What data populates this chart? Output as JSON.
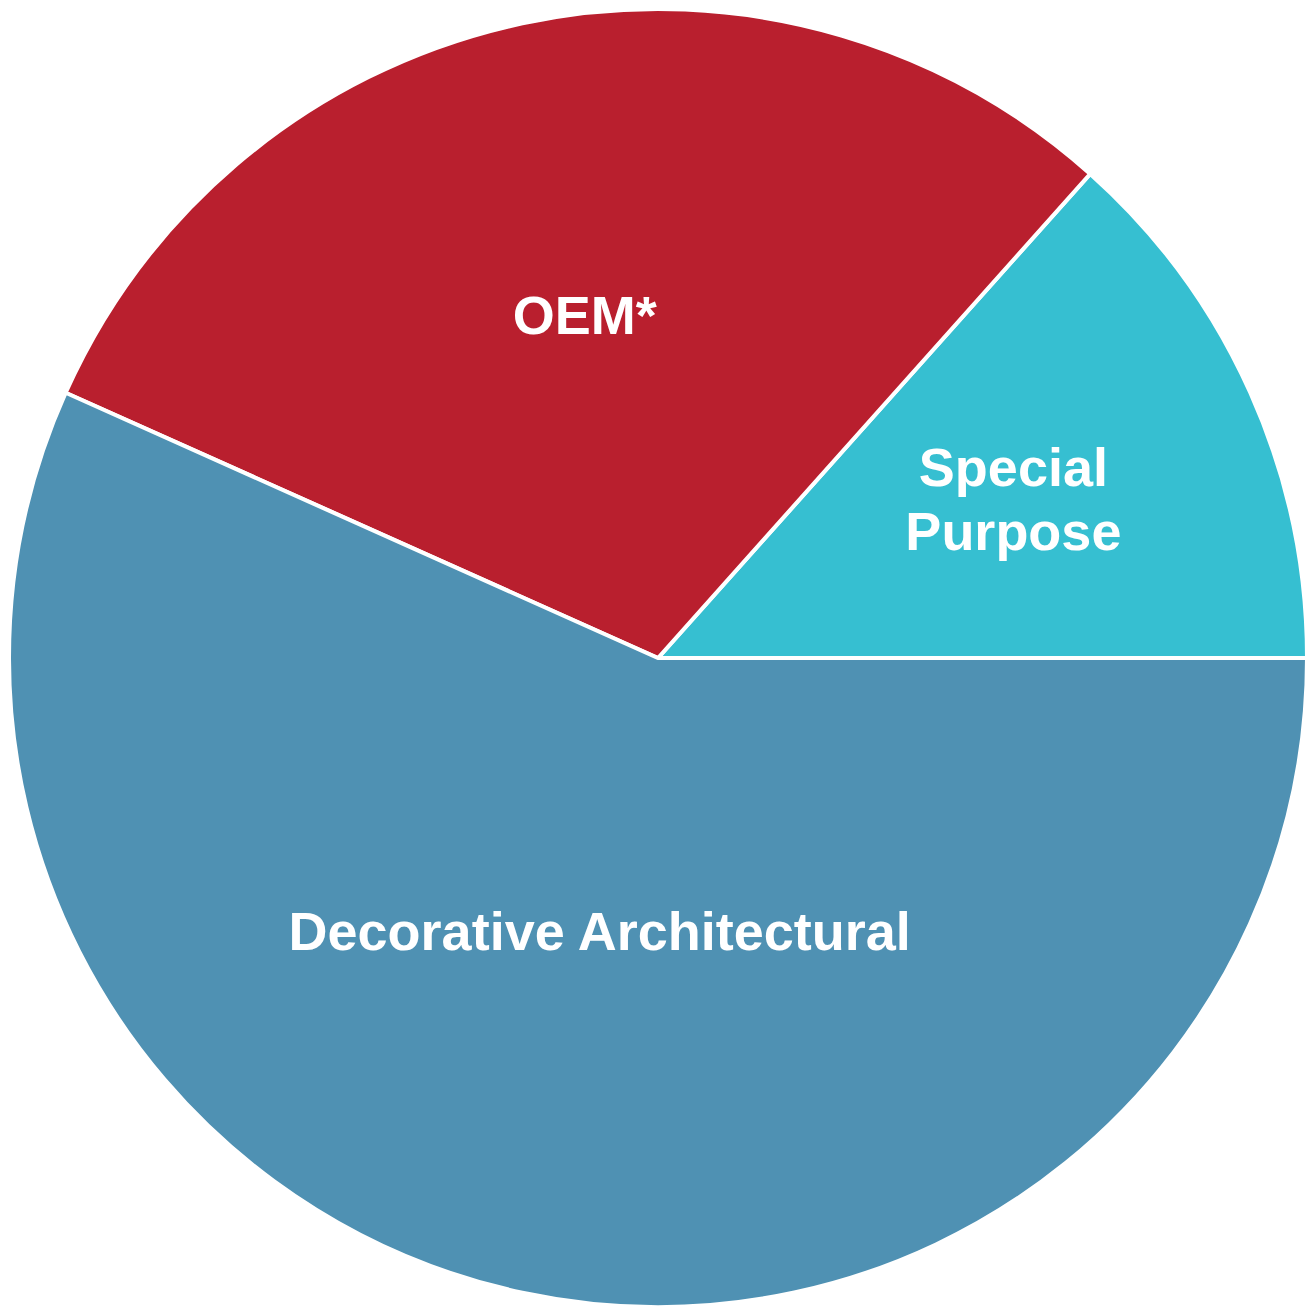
{
  "chart_data": {
    "type": "pie",
    "categories": [
      "Special Purpose",
      "OEM*",
      "Decorative Architectural"
    ],
    "values": [
      13.4,
      29.9,
      56.7
    ],
    "colors": [
      "#36bfd1",
      "#b91f2e",
      "#4f91b3"
    ],
    "legend": false
  }
}
